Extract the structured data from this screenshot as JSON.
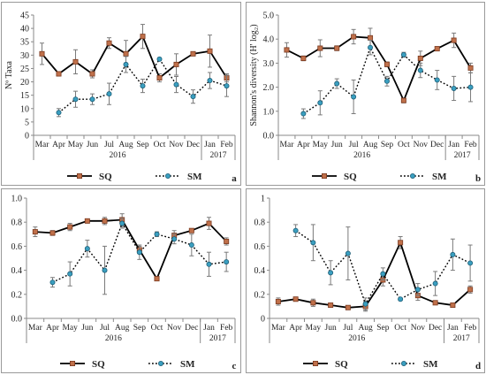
{
  "chart_data": [
    {
      "panel": "a",
      "type": "line",
      "ylabel": "Nº Taxa",
      "ylim": [
        0,
        45
      ],
      "yticks": [
        0,
        5,
        10,
        15,
        20,
        25,
        30,
        35,
        40,
        45
      ],
      "categories": [
        "Mar",
        "Apr",
        "May",
        "Jun",
        "Jul",
        "Aug",
        "Sep",
        "Oct",
        "Nov",
        "Dec",
        "Jan",
        "Feb"
      ],
      "year_labels": [
        "2016",
        "2017"
      ],
      "series": [
        {
          "name": "SQ",
          "values": [
            30.5,
            23,
            27.5,
            23,
            34.5,
            30.5,
            37,
            21.5,
            26.5,
            30.5,
            31.5,
            21.5
          ],
          "errors": [
            4,
            0.5,
            4.5,
            1.5,
            2,
            5,
            4.5,
            1.5,
            4,
            0.5,
            6,
            1.5
          ]
        },
        {
          "name": "SM",
          "values": [
            null,
            8.5,
            13.5,
            13.5,
            15.5,
            26.5,
            18.5,
            28.5,
            19,
            14.5,
            20.5,
            18.5
          ],
          "errors": [
            null,
            1.5,
            3,
            2,
            4,
            3,
            2.5,
            0.5,
            3,
            2.5,
            3,
            4
          ]
        }
      ],
      "legend": [
        "SQ",
        "SM"
      ],
      "panel_label": "a"
    },
    {
      "panel": "b",
      "type": "line",
      "ylabel": "Shannon's diversity (H' log₂)",
      "ylim": [
        0,
        5
      ],
      "yticks": [
        "0.0",
        "1.0",
        "2.0",
        "3.0",
        "4.0",
        "5.0"
      ],
      "categories": [
        "Mar",
        "Apr",
        "May",
        "Jun",
        "Jul",
        "Aug",
        "Sep",
        "Oct",
        "Nov",
        "Dec",
        "Jan",
        "Feb"
      ],
      "year_labels": [
        "2016",
        "2017"
      ],
      "series": [
        {
          "name": "SQ",
          "values": [
            3.55,
            3.2,
            3.62,
            3.62,
            4.1,
            4.05,
            2.95,
            1.45,
            3.2,
            3.6,
            3.95,
            2.8
          ],
          "errors": [
            0.3,
            0.1,
            0.35,
            0.1,
            0.3,
            0.4,
            0.1,
            0.1,
            0.3,
            0.05,
            0.3,
            0.2
          ]
        },
        {
          "name": "SM",
          "values": [
            null,
            0.9,
            1.35,
            2.15,
            1.6,
            3.65,
            2.25,
            3.35,
            2.7,
            2.3,
            1.95,
            2.0
          ],
          "errors": [
            null,
            0.2,
            0.5,
            0.2,
            0.7,
            0.3,
            0.2,
            0.1,
            0.3,
            0.4,
            0.5,
            0.6
          ]
        }
      ],
      "legend": [
        "SQ",
        "SM"
      ],
      "panel_label": "b"
    },
    {
      "panel": "c",
      "type": "line",
      "ylim": [
        0,
        1
      ],
      "yticks": [
        "0.0",
        "0.2",
        "0.4",
        "0.6",
        "0.8",
        "1.0"
      ],
      "categories": [
        "Mar",
        "Apr",
        "May",
        "Jun",
        "Jul",
        "Aug",
        "Sep",
        "Oct",
        "Nov",
        "Dec",
        "Jan",
        "Feb"
      ],
      "year_labels": [
        "2016",
        "2017"
      ],
      "series": [
        {
          "name": "SQ",
          "values": [
            0.72,
            0.71,
            0.76,
            0.81,
            0.81,
            0.82,
            0.57,
            0.33,
            0.69,
            0.73,
            0.79,
            0.64
          ],
          "errors": [
            0.04,
            0.02,
            0.03,
            0.01,
            0.03,
            0.05,
            0.03,
            0.01,
            0.04,
            0.01,
            0.05,
            0.03
          ]
        },
        {
          "name": "SM",
          "values": [
            null,
            0.3,
            0.37,
            0.58,
            0.4,
            0.79,
            0.55,
            0.7,
            0.66,
            0.61,
            0.45,
            0.47
          ],
          "errors": [
            null,
            0.04,
            0.1,
            0.07,
            0.2,
            0.04,
            0.06,
            0.02,
            0.04,
            0.09,
            0.1,
            0.08
          ]
        }
      ],
      "legend": [
        "SQ",
        "SM"
      ],
      "panel_label": "c"
    },
    {
      "panel": "d",
      "type": "line",
      "ylim": [
        0,
        1
      ],
      "yticks": [
        "0",
        "0.2",
        "0.4",
        "0.6",
        "0.8",
        "1"
      ],
      "categories": [
        "Mar",
        "Apr",
        "May",
        "Jun",
        "Jul",
        "Aug",
        "Sep",
        "Oct",
        "Nov",
        "Dec",
        "Jan",
        "Feb"
      ],
      "year_labels": [
        "2016",
        "2017"
      ],
      "series": [
        {
          "name": "SQ",
          "values": [
            0.14,
            0.16,
            0.13,
            0.11,
            0.09,
            0.1,
            0.32,
            0.63,
            0.19,
            0.13,
            0.11,
            0.24
          ],
          "errors": [
            0.03,
            0.01,
            0.03,
            0.01,
            0.01,
            0.04,
            0.05,
            0.05,
            0.04,
            0.01,
            0.01,
            0.03
          ]
        },
        {
          "name": "SM",
          "values": [
            null,
            0.73,
            0.63,
            0.38,
            0.54,
            0.12,
            0.37,
            0.16,
            0.24,
            0.29,
            0.53,
            0.46
          ],
          "errors": [
            null,
            0.05,
            0.15,
            0.1,
            0.22,
            0.05,
            0.05,
            0.01,
            0.05,
            0.1,
            0.13,
            0.15
          ]
        }
      ],
      "legend": [
        "SQ",
        "SM"
      ],
      "panel_label": "d"
    }
  ],
  "colors": {
    "sq_line": "#000000",
    "sq_marker_fill": "#c0704a",
    "sq_marker_edge": "#7a3a20",
    "sm_line": "#000000",
    "sm_marker_fill": "#3a9fc0",
    "sm_marker_edge": "#1f5f78",
    "error_bar": "#7a7a7a"
  }
}
